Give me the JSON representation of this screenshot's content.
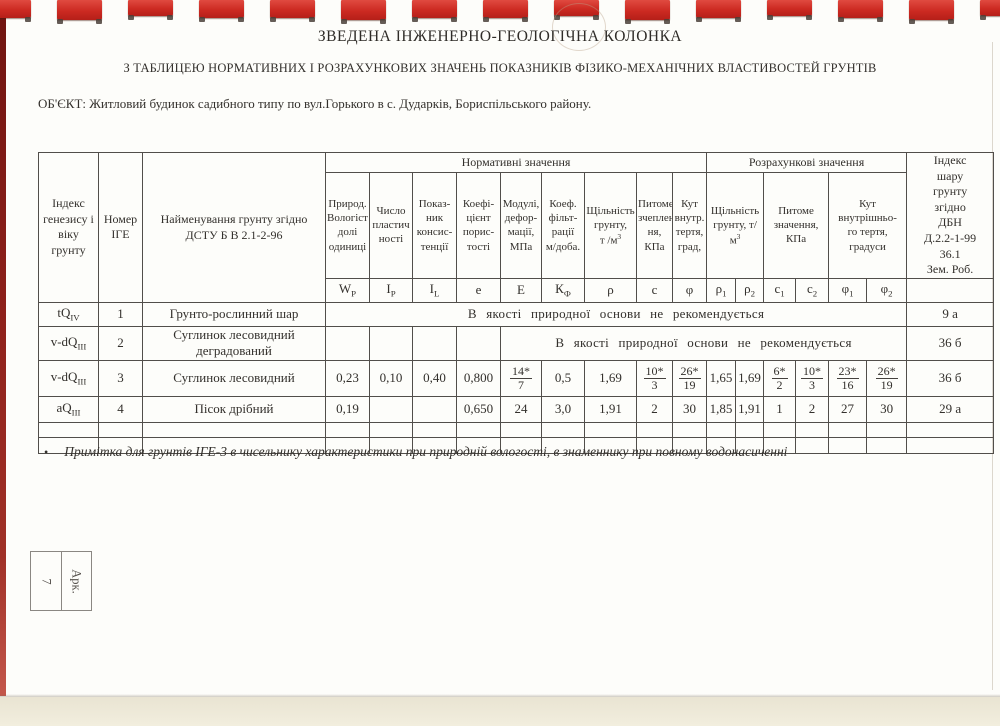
{
  "document": {
    "title": "ЗВЕДЕНА ІНЖЕНЕРНО-ГЕОЛОГІЧНА КОЛОНКА",
    "subtitle": "З ТАБЛИЦЕЮ НОРМАТИВНИХ І РОЗРАХУНКОВИХ ЗНАЧЕНЬ ПОКАЗНИКІВ ФІЗИКО-МЕХАНІЧНИХ ВЛАСТИВОСТЕЙ ГРУНТІВ",
    "object_line": "ОБ'ЄКТ: Житловий будинок садибного типу по вул.Горького  в с. Дударків, Бориспільського району.",
    "note_bullet": "•",
    "note": "Примітка для грунтів  ІГЕ-3 в чисельнику характеристики при природній вологості, в знаменнику при  повному водонасиченні",
    "sheet_box": {
      "label": "Арк.",
      "number": "7"
    }
  },
  "colors": {
    "binding_red": "#cc2a22",
    "spine_maroon": "#7d1b15",
    "table_line": "#514e4a",
    "desk": "#f2eede"
  },
  "table": {
    "header": {
      "col_genesis": "Індекс\nгенезису і\nвіку грунту",
      "col_number": "Номер\nІГЕ",
      "col_name": "Найменування грунту згідно\nДСТУ Б В 2.1-2-96",
      "group_normative": "Нормативні значення",
      "group_calculated": "Розрахункові значення",
      "col_layer_index": "Індекс\nшару\nгрунту\nзгідно\nДБН\nД.2.2-1-99\n36.1\nЗем. Роб.",
      "normative_cols": [
        {
          "label": "Природ.\nВологіст\nдолі\nодиниці",
          "sym": "W_{P}"
        },
        {
          "label": "Число\nпластич\nності",
          "sym": "I_{P}"
        },
        {
          "label": "Показ-\nник\nконсис-\nтенції",
          "sym": "I_{L}"
        },
        {
          "label": "Коефі-\nцієнт\nпорис-\nтості",
          "sym": "e"
        },
        {
          "label": "Модулі,\nдефор-\nмації,\nМПа",
          "sym": "E"
        },
        {
          "label": "Коеф.\nфільт-\nрації\nм/доба.",
          "sym": "К_{Ф}"
        },
        {
          "label": "Щільність\nгрунту,\nт /м^{3}",
          "sym": "ρ"
        },
        {
          "label": "Питоме\nзчеплен\nня,\nКПа",
          "sym": "c"
        },
        {
          "label": "Кут\nвнутр.\nтертя,\nград,",
          "sym": "φ"
        }
      ],
      "calculated_cols": [
        {
          "label": "Щільність\nгрунту, т/м^{3}",
          "syms": [
            "ρ_{1}",
            "ρ_{2}"
          ]
        },
        {
          "label": "Питоме\nзначення,\nКПа",
          "syms": [
            "c_{1}",
            "c_{2}"
          ]
        },
        {
          "label": "Кут\nвнутрішньо-\nго  тертя,\nградуси",
          "syms": [
            "φ_{1}",
            "φ_{2}"
          ]
        }
      ]
    },
    "rows": [
      {
        "cells": [
          {
            "v": "tQ_{IV}"
          },
          {
            "v": "1"
          },
          {
            "v": "Грунто-рослинний шар",
            "cls": "name"
          },
          {
            "v": "В якості природної основи не рекомендується",
            "span": 15,
            "cls": "merged"
          },
          {
            "v": "9 а"
          }
        ]
      },
      {
        "cells": [
          {
            "v": "v-dQ_{III}"
          },
          {
            "v": "2"
          },
          {
            "v": "Суглинок лесовидний деградований",
            "cls": "name"
          },
          {
            "v": ""
          },
          {
            "v": ""
          },
          {
            "v": ""
          },
          {
            "v": ""
          },
          {
            "v": "В якості природної основи не рекомендується",
            "span": 11,
            "cls": "merged"
          },
          {
            "v": "36 б"
          }
        ]
      },
      {
        "cells": [
          {
            "v": "v-dQ_{III}"
          },
          {
            "v": "3"
          },
          {
            "v": "Суглинок лесовидний",
            "cls": "name"
          },
          {
            "v": "0,23"
          },
          {
            "v": "0,10"
          },
          {
            "v": "0,40"
          },
          {
            "v": "0,800"
          },
          {
            "frac": [
              "14*",
              "7"
            ]
          },
          {
            "v": "0,5"
          },
          {
            "v": "1,69"
          },
          {
            "frac": [
              "10*",
              "3"
            ]
          },
          {
            "frac": [
              "26*",
              "19"
            ]
          },
          {
            "v": "1,65"
          },
          {
            "v": "1,69"
          },
          {
            "frac": [
              "6*",
              "2"
            ]
          },
          {
            "frac": [
              "10*",
              "3"
            ]
          },
          {
            "frac": [
              "23*",
              "16"
            ]
          },
          {
            "frac": [
              "26*",
              "19"
            ]
          },
          {
            "v": "36 б"
          }
        ]
      },
      {
        "cells": [
          {
            "v": "aQ_{III}"
          },
          {
            "v": "4"
          },
          {
            "v": "Пісок дрібний",
            "cls": "name"
          },
          {
            "v": "0,19"
          },
          {
            "v": ""
          },
          {
            "v": ""
          },
          {
            "v": "0,650"
          },
          {
            "v": "24"
          },
          {
            "v": "3,0"
          },
          {
            "v": "1,91"
          },
          {
            "v": "2"
          },
          {
            "v": "30"
          },
          {
            "v": "1,85"
          },
          {
            "v": "1,91"
          },
          {
            "v": "1"
          },
          {
            "v": "2"
          },
          {
            "v": "27"
          },
          {
            "v": "30"
          },
          {
            "v": "29 а"
          }
        ]
      },
      {
        "cells": [
          {
            "v": ""
          },
          {
            "v": ""
          },
          {
            "v": ""
          },
          {
            "v": ""
          },
          {
            "v": ""
          },
          {
            "v": ""
          },
          {
            "v": ""
          },
          {
            "v": ""
          },
          {
            "v": ""
          },
          {
            "v": ""
          },
          {
            "v": ""
          },
          {
            "v": ""
          },
          {
            "v": ""
          },
          {
            "v": ""
          },
          {
            "v": ""
          },
          {
            "v": ""
          },
          {
            "v": ""
          },
          {
            "v": ""
          },
          {
            "v": ""
          }
        ]
      },
      {
        "cells": [
          {
            "v": ""
          },
          {
            "v": ""
          },
          {
            "v": ""
          },
          {
            "v": ""
          },
          {
            "v": ""
          },
          {
            "v": ""
          },
          {
            "v": ""
          },
          {
            "v": ""
          },
          {
            "v": ""
          },
          {
            "v": ""
          },
          {
            "v": ""
          },
          {
            "v": ""
          },
          {
            "v": ""
          },
          {
            "v": ""
          },
          {
            "v": ""
          },
          {
            "v": ""
          },
          {
            "v": ""
          },
          {
            "v": ""
          },
          {
            "v": ""
          }
        ]
      }
    ]
  }
}
